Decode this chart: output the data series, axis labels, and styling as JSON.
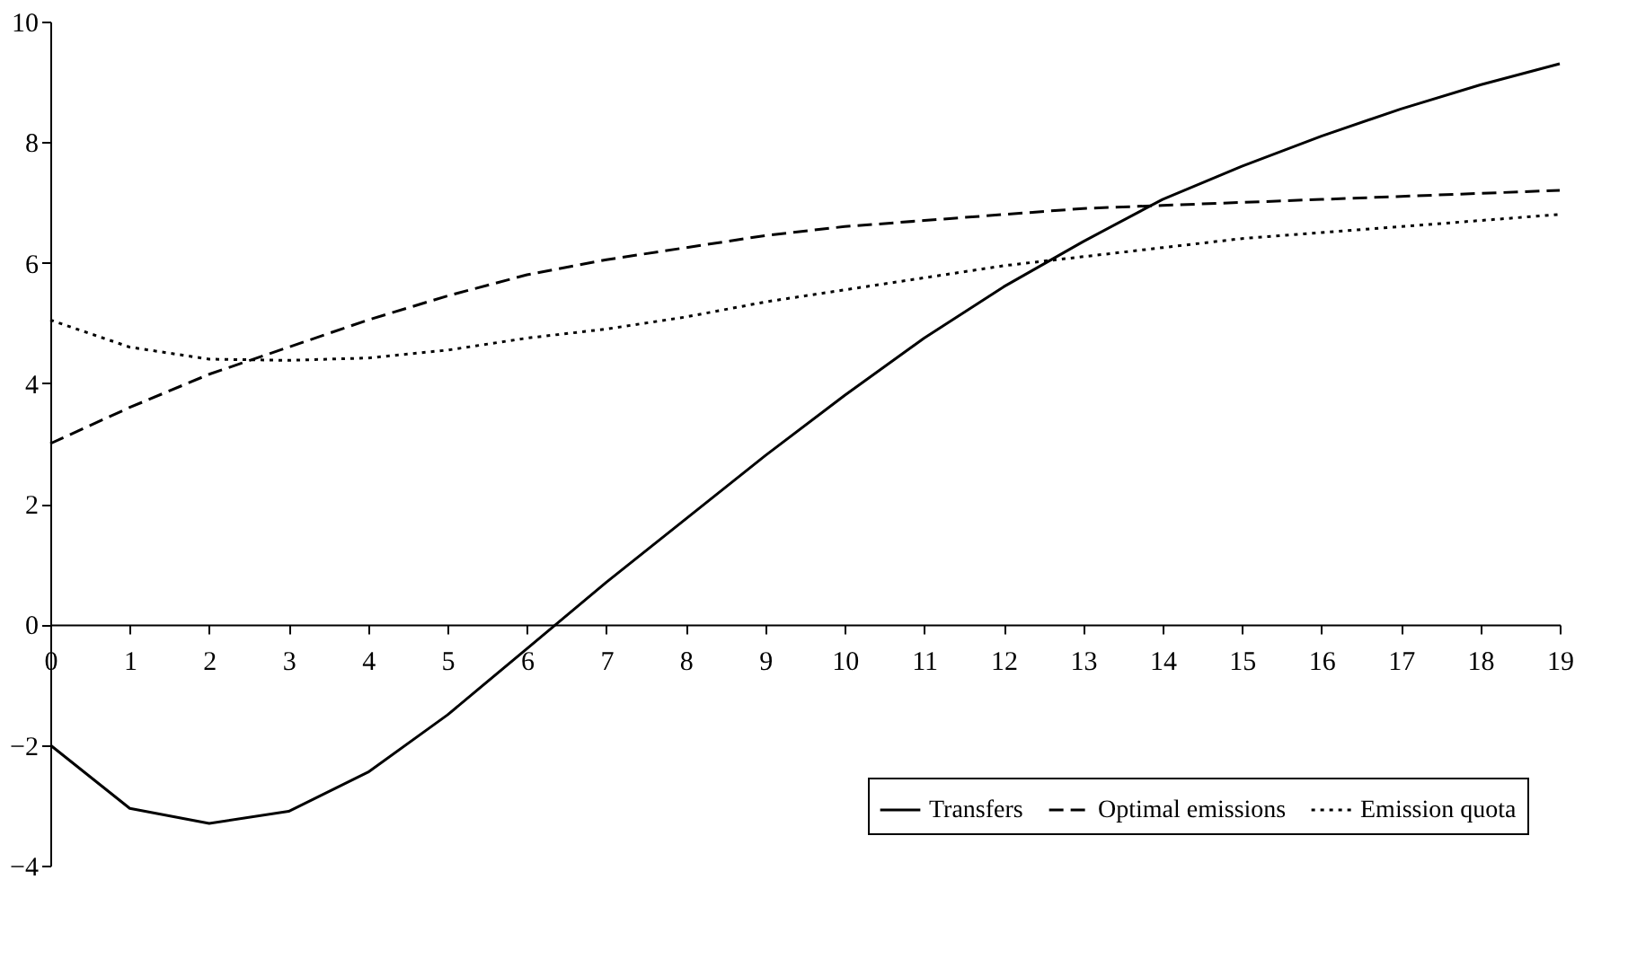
{
  "chart_data": {
    "type": "line",
    "x": [
      0,
      1,
      2,
      3,
      4,
      5,
      6,
      7,
      8,
      9,
      10,
      11,
      12,
      13,
      14,
      15,
      16,
      17,
      18,
      19
    ],
    "xlim": [
      0,
      19
    ],
    "xticks": [
      0,
      1,
      2,
      3,
      4,
      5,
      6,
      7,
      8,
      9,
      10,
      11,
      12,
      13,
      14,
      15,
      16,
      17,
      18,
      19
    ],
    "ylim": [
      -4,
      10
    ],
    "yticks": [
      -4,
      -2,
      0,
      2,
      4,
      6,
      8,
      10
    ],
    "grid": false,
    "legend": "bottom right",
    "marker": "none",
    "series": [
      {
        "name": "Transfers",
        "color": "#000000",
        "line_style": "solid",
        "values": [
          -2.0,
          -3.05,
          -3.3,
          -3.1,
          -2.45,
          -1.5,
          -0.4,
          0.7,
          1.75,
          2.8,
          3.8,
          4.75,
          5.6,
          6.35,
          7.05,
          7.6,
          8.1,
          8.55,
          8.95,
          9.3
        ]
      },
      {
        "name": "Optimal emissions",
        "color": "#000000",
        "line_style": "dashed",
        "values": [
          3.0,
          3.6,
          4.15,
          4.6,
          5.05,
          5.45,
          5.8,
          6.05,
          6.25,
          6.45,
          6.6,
          6.7,
          6.8,
          6.9,
          6.95,
          7.0,
          7.05,
          7.1,
          7.15,
          7.2
        ]
      },
      {
        "name": "Emission quota",
        "color": "#000000",
        "line_style": "dotted",
        "values": [
          5.05,
          4.6,
          4.4,
          4.38,
          4.42,
          4.55,
          4.75,
          4.9,
          5.1,
          5.35,
          5.55,
          5.75,
          5.95,
          6.1,
          6.25,
          6.4,
          6.5,
          6.6,
          6.7,
          6.8
        ]
      }
    ]
  }
}
